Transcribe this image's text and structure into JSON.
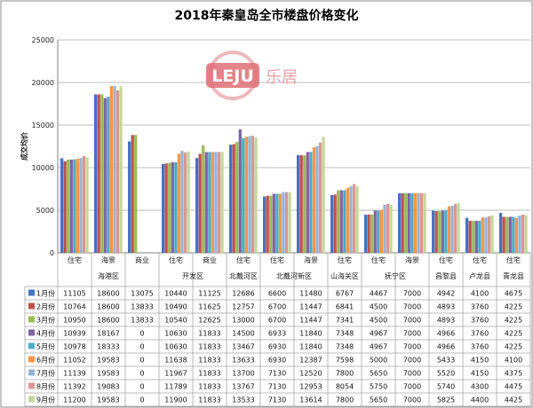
{
  "title": "2018年秦皇岛全市楼盘价格变化",
  "logo": {
    "latin": "LEJU",
    "cn": "乐居",
    "color": "#d94b57"
  },
  "chart_data": {
    "type": "bar",
    "title": "2018年秦皇岛全市楼盘价格变化",
    "ylabel": "成交均价",
    "ylim": [
      0,
      25000
    ],
    "yticks": [
      0,
      5000,
      10000,
      15000,
      20000,
      25000
    ],
    "grid": true,
    "legend": "table-left",
    "categories": [
      {
        "type": "住宅",
        "region": "海港区"
      },
      {
        "type": "海景",
        "region": ""
      },
      {
        "type": "商业",
        "region": ""
      },
      {
        "type": "住宅",
        "region": "开发区"
      },
      {
        "type": "商业",
        "region": ""
      },
      {
        "type": "住宅",
        "region": "北戴河区"
      },
      {
        "type": "住宅",
        "region": "北戴河新区"
      },
      {
        "type": "海景",
        "region": ""
      },
      {
        "type": "住宅",
        "region": "山海关区"
      },
      {
        "type": "住宅",
        "region": "抚宁区"
      },
      {
        "type": "海景",
        "region": ""
      },
      {
        "type": "住宅",
        "region": "昌黎县"
      },
      {
        "type": "住宅",
        "region": "卢龙县"
      },
      {
        "type": "住宅",
        "region": "青龙县"
      }
    ],
    "groups": [
      {
        "name": "海港区",
        "start": 0,
        "end": 2
      },
      {
        "name": "开发区",
        "start": 3,
        "end": 4
      },
      {
        "name": "北戴河区",
        "start": 5,
        "end": 5
      },
      {
        "name": "北戴河新区",
        "start": 6,
        "end": 7
      },
      {
        "name": "山海关区",
        "start": 8,
        "end": 8
      },
      {
        "name": "抚宁区",
        "start": 9,
        "end": 10
      },
      {
        "name": "昌黎县",
        "start": 11,
        "end": 11
      },
      {
        "name": "卢龙县",
        "start": 12,
        "end": 12
      },
      {
        "name": "青龙县",
        "start": 13,
        "end": 13
      }
    ],
    "series": [
      {
        "name": "1月份",
        "color": "#4472c4",
        "values": [
          11105,
          18600,
          13075,
          10440,
          11125,
          12686,
          6600,
          11480,
          6767,
          4467,
          7000,
          4942,
          4100,
          4675
        ]
      },
      {
        "name": "2月份",
        "color": "#c0504d",
        "values": [
          10764,
          18600,
          13833,
          10490,
          11625,
          12757,
          6700,
          11447,
          6841,
          4500,
          7000,
          4893,
          3760,
          4225
        ]
      },
      {
        "name": "3月份",
        "color": "#9bbb59",
        "values": [
          10950,
          18600,
          13833,
          10540,
          12625,
          13000,
          6700,
          11447,
          7341,
          4500,
          7000,
          4893,
          3760,
          4225
        ]
      },
      {
        "name": "4月份",
        "color": "#8064a2",
        "values": [
          10939,
          18167,
          0,
          10630,
          11833,
          14500,
          6933,
          11840,
          7348,
          4967,
          7000,
          4966,
          3760,
          4225
        ]
      },
      {
        "name": "5月份",
        "color": "#4bacc6",
        "values": [
          10978,
          18333,
          0,
          10630,
          11833,
          13467,
          6930,
          11840,
          7348,
          4967,
          7000,
          4966,
          3760,
          4225
        ]
      },
      {
        "name": "6月份",
        "color": "#f79646",
        "values": [
          11052,
          19583,
          0,
          11638,
          11833,
          13633,
          6930,
          12387,
          7598,
          5000,
          7000,
          5433,
          4150,
          4100
        ]
      },
      {
        "name": "7月份",
        "color": "#95b3d7",
        "values": [
          11139,
          19583,
          0,
          11967,
          11833,
          13700,
          7130,
          12520,
          7800,
          5650,
          7000,
          5520,
          4150,
          4375
        ]
      },
      {
        "name": "8月份",
        "color": "#da9694",
        "values": [
          11392,
          19083,
          0,
          11789,
          11833,
          13767,
          7130,
          12953,
          8054,
          5750,
          7000,
          5740,
          4300,
          4475
        ]
      },
      {
        "name": "9月份",
        "color": "#c4d79b",
        "values": [
          11200,
          19583,
          0,
          11900,
          11833,
          13533,
          7130,
          13614,
          7800,
          5650,
          7000,
          5825,
          4400,
          4425
        ]
      }
    ]
  }
}
